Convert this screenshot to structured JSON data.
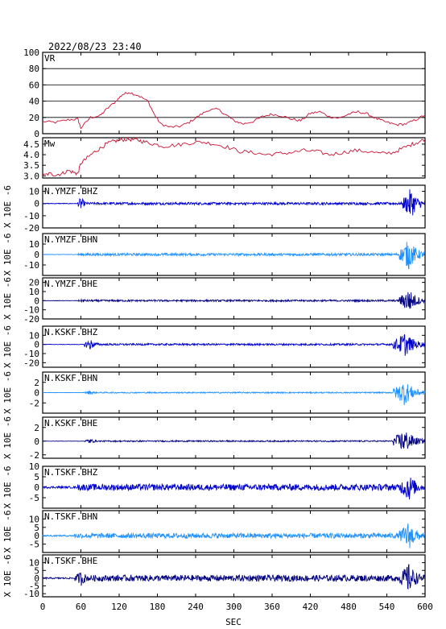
{
  "header": {
    "timestamp": "2022/08/23 23:40"
  },
  "x_axis": {
    "label": "SEC",
    "ticks": [
      0,
      60,
      120,
      180,
      240,
      300,
      360,
      420,
      480,
      540,
      600
    ],
    "range": [
      0,
      600
    ]
  },
  "chart_data": [
    {
      "type": "line",
      "title": "VR",
      "ylim": [
        0,
        100
      ],
      "yticks": [
        0,
        20,
        40,
        60,
        80,
        100
      ],
      "grid": true,
      "color": "#cc1133",
      "x": [
        0,
        20,
        40,
        55,
        60,
        75,
        90,
        100,
        115,
        125,
        135,
        150,
        165,
        175,
        185,
        200,
        215,
        230,
        245,
        260,
        275,
        290,
        300,
        315,
        330,
        345,
        360,
        375,
        390,
        405,
        420,
        435,
        450,
        465,
        480,
        495,
        510,
        525,
        540,
        555,
        570,
        585,
        600
      ],
      "values": [
        15,
        14,
        17,
        18,
        7,
        20,
        22,
        30,
        40,
        48,
        51,
        47,
        40,
        24,
        12,
        8,
        9,
        14,
        22,
        29,
        30,
        22,
        16,
        12,
        15,
        21,
        24,
        22,
        18,
        16,
        25,
        27,
        21,
        19,
        24,
        27,
        24,
        18,
        14,
        11,
        12,
        17,
        23
      ]
    },
    {
      "type": "line",
      "title": "Mw",
      "ylim": [
        2.9,
        4.8
      ],
      "yticks": [
        3.0,
        3.5,
        4.0,
        4.5
      ],
      "grid": false,
      "color": "#cc1133",
      "x": [
        0,
        10,
        20,
        30,
        40,
        50,
        55,
        60,
        70,
        80,
        90,
        100,
        110,
        120,
        130,
        140,
        150,
        160,
        175,
        190,
        210,
        230,
        250,
        270,
        290,
        310,
        330,
        350,
        370,
        390,
        410,
        430,
        450,
        470,
        490,
        510,
        530,
        550,
        565,
        580,
        590,
        600
      ],
      "values": [
        3.0,
        3.1,
        3.05,
        3.1,
        3.25,
        3.15,
        3.1,
        3.6,
        3.85,
        4.1,
        4.3,
        4.5,
        4.62,
        4.68,
        4.72,
        4.72,
        4.68,
        4.6,
        4.5,
        4.4,
        4.45,
        4.55,
        4.6,
        4.5,
        4.35,
        4.15,
        4.1,
        4.0,
        4.05,
        4.1,
        4.2,
        4.15,
        4.0,
        4.1,
        4.2,
        4.15,
        4.05,
        4.1,
        4.3,
        4.5,
        4.6,
        4.75
      ]
    },
    {
      "type": "waveform",
      "title": "N.YMZF.BHZ",
      "ylim": [
        -20,
        15
      ],
      "yticks": [
        10,
        0,
        -10,
        -20
      ],
      "color": "#0000cc",
      "onset_sec": 55,
      "pre_noise": 0.3,
      "coda_amp": 1.0,
      "main_amp": 12,
      "burst": [
        [
          55,
          70,
          6
        ],
        [
          565,
          600,
          13
        ]
      ]
    },
    {
      "type": "waveform",
      "title": "N.YMZF.BHN",
      "ylim": [
        -20,
        20
      ],
      "yticks": [
        10,
        0,
        -10
      ],
      "color": "#1e90ff",
      "onset_sec": 55,
      "pre_noise": 0.2,
      "coda_amp": 1.2,
      "main_amp": 14,
      "burst": [
        [
          60,
          80,
          1.5
        ],
        [
          560,
          600,
          15
        ]
      ]
    },
    {
      "type": "waveform",
      "title": "N.YMZF.BHE",
      "ylim": [
        -20,
        25
      ],
      "yticks": [
        20,
        10,
        0,
        -10,
        -20
      ],
      "color": "#000080",
      "onset_sec": 55,
      "pre_noise": 0.2,
      "coda_amp": 1.0,
      "main_amp": 11,
      "burst": [
        [
          55,
          80,
          2
        ],
        [
          560,
          600,
          14
        ]
      ]
    },
    {
      "type": "waveform",
      "title": "N.KSKF.BHZ",
      "ylim": [
        -25,
        20
      ],
      "yticks": [
        10,
        0,
        -10,
        -20
      ],
      "color": "#0000cc",
      "onset_sec": 65,
      "pre_noise": 0.3,
      "coda_amp": 1.0,
      "main_amp": 12,
      "burst": [
        [
          65,
          90,
          7
        ],
        [
          550,
          600,
          14
        ]
      ]
    },
    {
      "type": "waveform",
      "title": "N.KSKF.BHN",
      "ylim": [
        -4,
        4
      ],
      "yticks": [
        2,
        0,
        -2
      ],
      "color": "#1e90ff",
      "onset_sec": 65,
      "pre_noise": 0.02,
      "coda_amp": 0.12,
      "main_amp": 1.8,
      "burst": [
        [
          65,
          90,
          0.4
        ],
        [
          550,
          600,
          2.5
        ]
      ]
    },
    {
      "type": "waveform",
      "title": "N.KSKF.BHE",
      "ylim": [
        -2.5,
        3.5
      ],
      "yticks": [
        2,
        0,
        -2
      ],
      "color": "#000080",
      "onset_sec": 65,
      "pre_noise": 0.02,
      "coda_amp": 0.1,
      "main_amp": 1.2,
      "burst": [
        [
          65,
          90,
          0.4
        ],
        [
          550,
          600,
          1.8
        ]
      ]
    },
    {
      "type": "waveform",
      "title": "N.TSKF.BHZ",
      "ylim": [
        -10,
        10
      ],
      "yticks": [
        10,
        5,
        0,
        -5
      ],
      "color": "#0000cc",
      "onset_sec": 55,
      "pre_noise": 0.5,
      "coda_amp": 1.5,
      "main_amp": 4,
      "burst": [
        [
          55,
          75,
          2
        ],
        [
          560,
          600,
          7
        ]
      ]
    },
    {
      "type": "waveform",
      "title": "N.TSKF.BHN",
      "ylim": [
        -10,
        15
      ],
      "yticks": [
        10,
        5,
        0,
        -5
      ],
      "color": "#1e90ff",
      "onset_sec": 50,
      "pre_noise": 0.5,
      "coda_amp": 1.5,
      "main_amp": 4,
      "burst": [
        [
          50,
          75,
          2
        ],
        [
          560,
          600,
          9
        ]
      ]
    },
    {
      "type": "waveform",
      "title": "N.TSKF.BHE",
      "ylim": [
        -12,
        15
      ],
      "yticks": [
        10,
        5,
        0,
        -5,
        -10
      ],
      "color": "#000080",
      "onset_sec": 50,
      "pre_noise": 0.5,
      "coda_amp": 2.0,
      "main_amp": 4,
      "burst": [
        [
          50,
          80,
          5
        ],
        [
          560,
          600,
          10
        ]
      ]
    }
  ],
  "y_axis_unit": "X 10E -6"
}
